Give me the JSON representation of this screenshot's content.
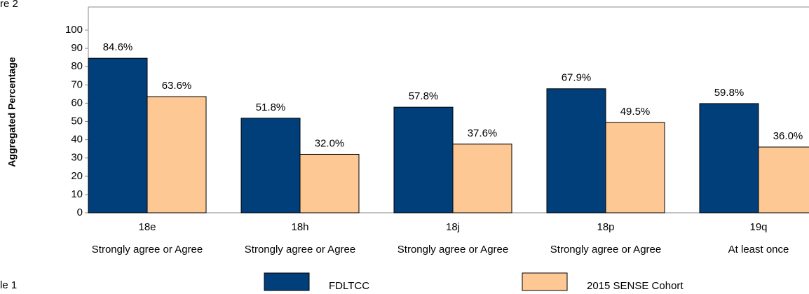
{
  "page_texts": {
    "top_left": "re 2",
    "bottom_left": "le 1"
  },
  "chart_data": {
    "type": "bar",
    "ylabel": "Aggregated Percentage",
    "categories": [
      "18e",
      "18h",
      "18j",
      "18p",
      "19q"
    ],
    "category_sublabels": [
      "Strongly agree or Agree",
      "Strongly agree or Agree",
      "Strongly agree or Agree",
      "Strongly agree or Agree",
      "At least once"
    ],
    "series": [
      {
        "name": "FDLTCC",
        "color": "#003f7a",
        "values": [
          84.6,
          51.8,
          57.8,
          67.9,
          59.8
        ],
        "value_labels": [
          "84.6%",
          "51.8%",
          "57.8%",
          "67.9%",
          "59.8%"
        ]
      },
      {
        "name": "2015 SENSE Cohort",
        "color": "#fdc894",
        "values": [
          63.6,
          32.0,
          37.6,
          49.5,
          36.0
        ],
        "value_labels": [
          "63.6%",
          "32.0%",
          "37.6%",
          "49.5%",
          "36.0%"
        ]
      }
    ],
    "ylim": [
      0,
      100
    ],
    "yticks": [
      0,
      10,
      20,
      30,
      40,
      50,
      60,
      70,
      80,
      90,
      100
    ],
    "grid": false,
    "legend": "bottom"
  }
}
